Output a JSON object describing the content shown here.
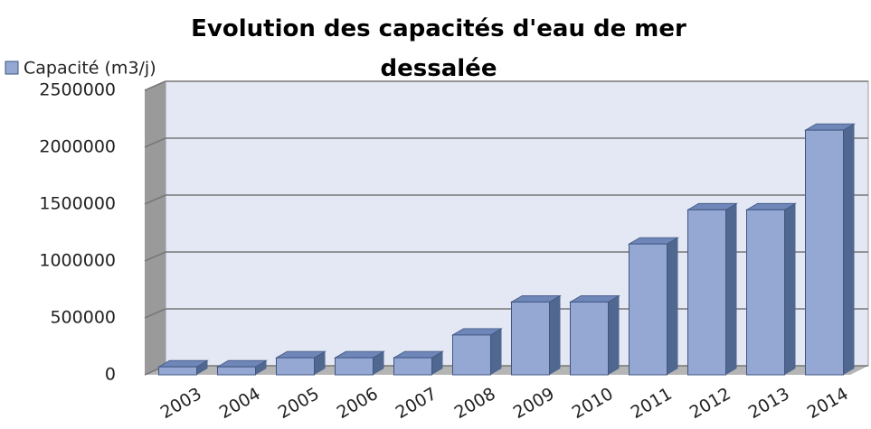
{
  "chart_data": {
    "type": "bar3d",
    "title": "Evolution des capacités d'eau de mer dessalée",
    "categories": [
      "2003",
      "2004",
      "2005",
      "2006",
      "2007",
      "2008",
      "2009",
      "2010",
      "2011",
      "2012",
      "2013",
      "2014"
    ],
    "series": [
      {
        "name": "Capacité (m3/j)",
        "color": "#95a8d3",
        "values": [
          70000,
          70000,
          150000,
          150000,
          150000,
          350000,
          640000,
          640000,
          1150000,
          1450000,
          1450000,
          2150000
        ]
      }
    ],
    "ylim": [
      0,
      2500000
    ],
    "yticks": [
      0,
      500000,
      1000000,
      1500000,
      2000000,
      2500000
    ],
    "grid": true,
    "legend": "top-left"
  }
}
